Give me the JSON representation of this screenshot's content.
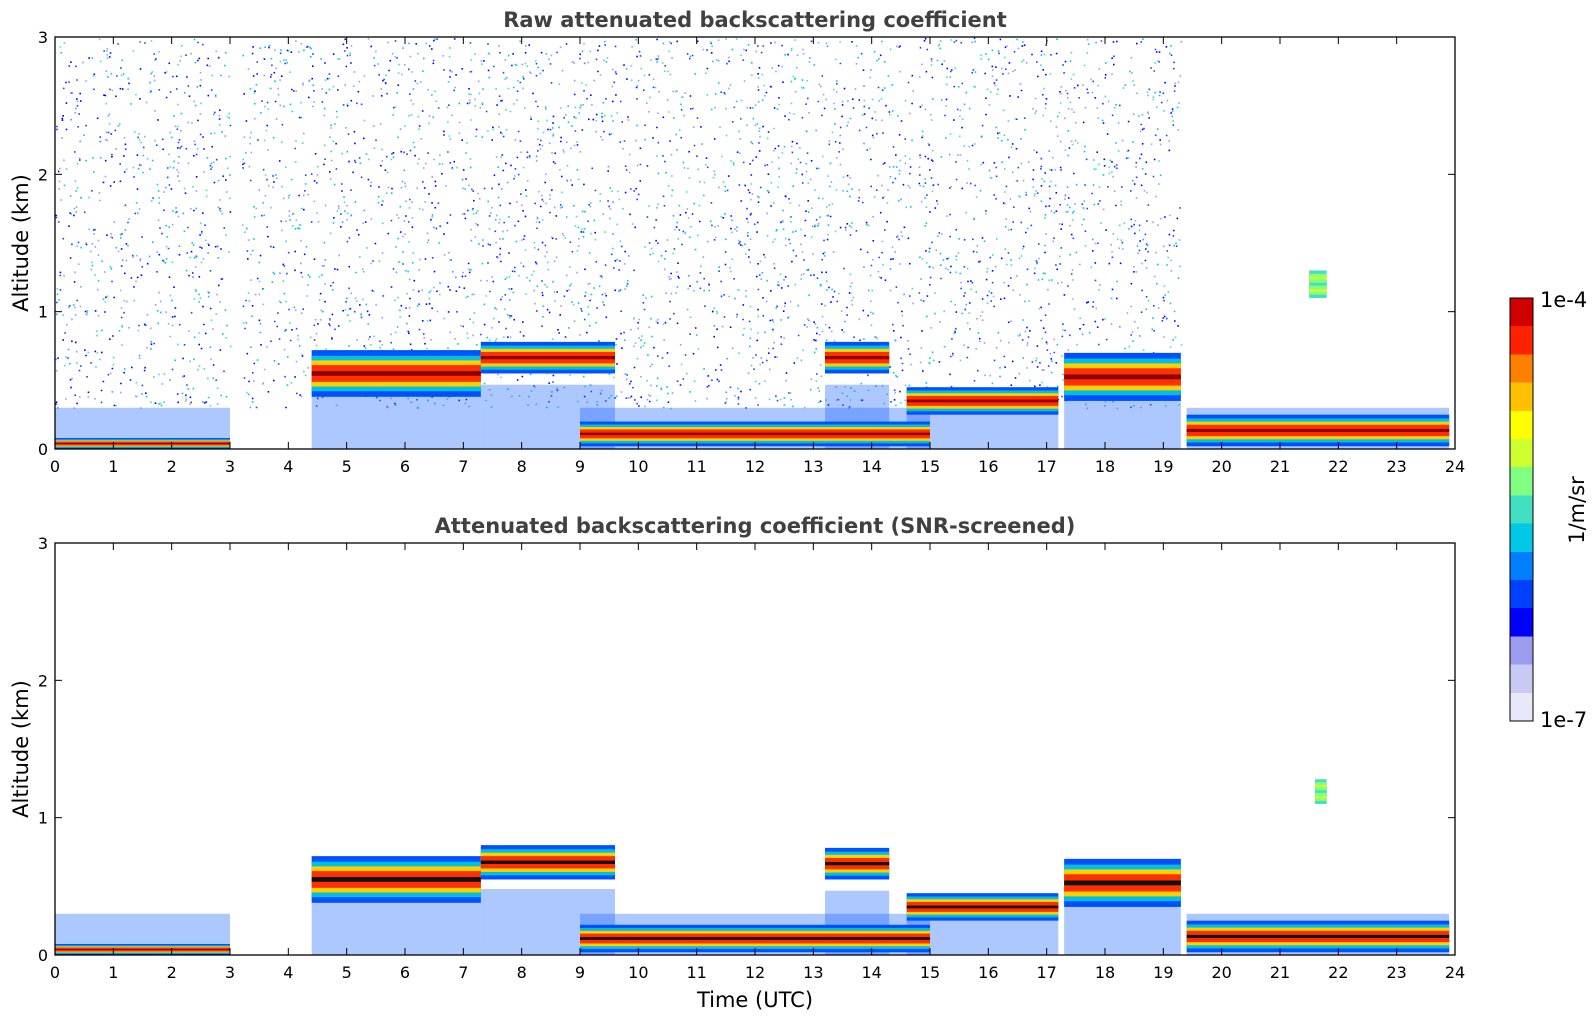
{
  "chart_data": [
    {
      "type": "heatmap",
      "title": "Raw attenuated backscattering coefficient",
      "xlabel": "",
      "ylabel": "Altitude (km)",
      "xlim": [
        0,
        24
      ],
      "ylim": [
        0,
        3
      ],
      "x_ticks": [
        "0",
        "1",
        "2",
        "3",
        "4",
        "5",
        "6",
        "7",
        "8",
        "9",
        "10",
        "11",
        "12",
        "13",
        "14",
        "15",
        "16",
        "17",
        "18",
        "19",
        "20",
        "21",
        "22",
        "23",
        "24"
      ],
      "y_ticks": [
        "0",
        "1",
        "2",
        "3"
      ],
      "layers": [
        {
          "kind": "aerosol_layer",
          "x": [
            0,
            3
          ],
          "base": 0.0,
          "top": 0.08,
          "level": "high"
        },
        {
          "kind": "aerosol_layer",
          "x": [
            4.4,
            7.3
          ],
          "base": 0.38,
          "top": 0.72,
          "level": "high"
        },
        {
          "kind": "cloud_layer",
          "x": [
            7.3,
            9.6
          ],
          "base": 0.55,
          "top": 0.78,
          "level": "high"
        },
        {
          "kind": "aerosol_layer",
          "x": [
            9.0,
            15.0
          ],
          "base": 0.02,
          "top": 0.2,
          "level": "high"
        },
        {
          "kind": "cloud_layer",
          "x": [
            13.2,
            14.3
          ],
          "base": 0.55,
          "top": 0.78,
          "level": "high"
        },
        {
          "kind": "aerosol_layer",
          "x": [
            14.6,
            17.2
          ],
          "base": 0.25,
          "top": 0.45,
          "level": "high"
        },
        {
          "kind": "cloud_layer",
          "x": [
            17.3,
            19.3
          ],
          "base": 0.35,
          "top": 0.7,
          "level": "high"
        },
        {
          "kind": "aerosol_layer",
          "x": [
            19.4,
            23.9
          ],
          "base": 0.02,
          "top": 0.25,
          "level": "high"
        },
        {
          "kind": "cloud_patch",
          "x": [
            21.5,
            21.8
          ],
          "base": 1.1,
          "top": 1.3,
          "level": "medium"
        }
      ],
      "noise_regions": [
        [
          0,
          3.0
        ],
        [
          3.2,
          7.3
        ],
        [
          7.3,
          12.0
        ],
        [
          12.0,
          14.7
        ],
        [
          14.8,
          19.3
        ]
      ]
    },
    {
      "type": "heatmap",
      "title": "Attenuated backscattering coefficient (SNR-screened)",
      "xlabel": "Time (UTC)",
      "ylabel": "Altitude (km)",
      "xlim": [
        0,
        24
      ],
      "ylim": [
        0,
        3
      ],
      "x_ticks": [
        "0",
        "1",
        "2",
        "3",
        "4",
        "5",
        "6",
        "7",
        "8",
        "9",
        "10",
        "11",
        "12",
        "13",
        "14",
        "15",
        "16",
        "17",
        "18",
        "19",
        "20",
        "21",
        "22",
        "23",
        "24"
      ],
      "y_ticks": [
        "0",
        "1",
        "2",
        "3"
      ],
      "layers": [
        {
          "kind": "aerosol_layer",
          "x": [
            0,
            3
          ],
          "base": 0.0,
          "top": 0.08,
          "level": "high"
        },
        {
          "kind": "aerosol_layer",
          "x": [
            4.4,
            7.3
          ],
          "base": 0.38,
          "top": 0.72,
          "level": "saturated"
        },
        {
          "kind": "cloud_layer",
          "x": [
            7.3,
            9.6
          ],
          "base": 0.55,
          "top": 0.8,
          "level": "saturated"
        },
        {
          "kind": "aerosol_layer",
          "x": [
            9.0,
            15.0
          ],
          "base": 0.02,
          "top": 0.22,
          "level": "saturated"
        },
        {
          "kind": "cloud_layer",
          "x": [
            13.2,
            14.3
          ],
          "base": 0.55,
          "top": 0.78,
          "level": "saturated"
        },
        {
          "kind": "aerosol_layer",
          "x": [
            14.6,
            17.2
          ],
          "base": 0.25,
          "top": 0.45,
          "level": "saturated"
        },
        {
          "kind": "cloud_layer",
          "x": [
            17.3,
            19.3
          ],
          "base": 0.35,
          "top": 0.7,
          "level": "saturated"
        },
        {
          "kind": "aerosol_layer",
          "x": [
            19.4,
            23.9
          ],
          "base": 0.02,
          "top": 0.25,
          "level": "saturated"
        },
        {
          "kind": "cloud_patch",
          "x": [
            21.6,
            21.8
          ],
          "base": 1.1,
          "top": 1.28,
          "level": "medium"
        }
      ]
    }
  ],
  "colorbar": {
    "min_label": "1e-7",
    "max_label": "1e-4",
    "unit": "1/m/sr",
    "scale": "log",
    "colors": [
      "#e8e8fb",
      "#c9c9f5",
      "#9b9bf0",
      "#0000ff",
      "#0040ff",
      "#0080ff",
      "#00c8e6",
      "#40e0c0",
      "#80ff80",
      "#d0ff30",
      "#ffff00",
      "#ffc000",
      "#ff8000",
      "#ff2000",
      "#d00000",
      "#8b0000"
    ]
  }
}
